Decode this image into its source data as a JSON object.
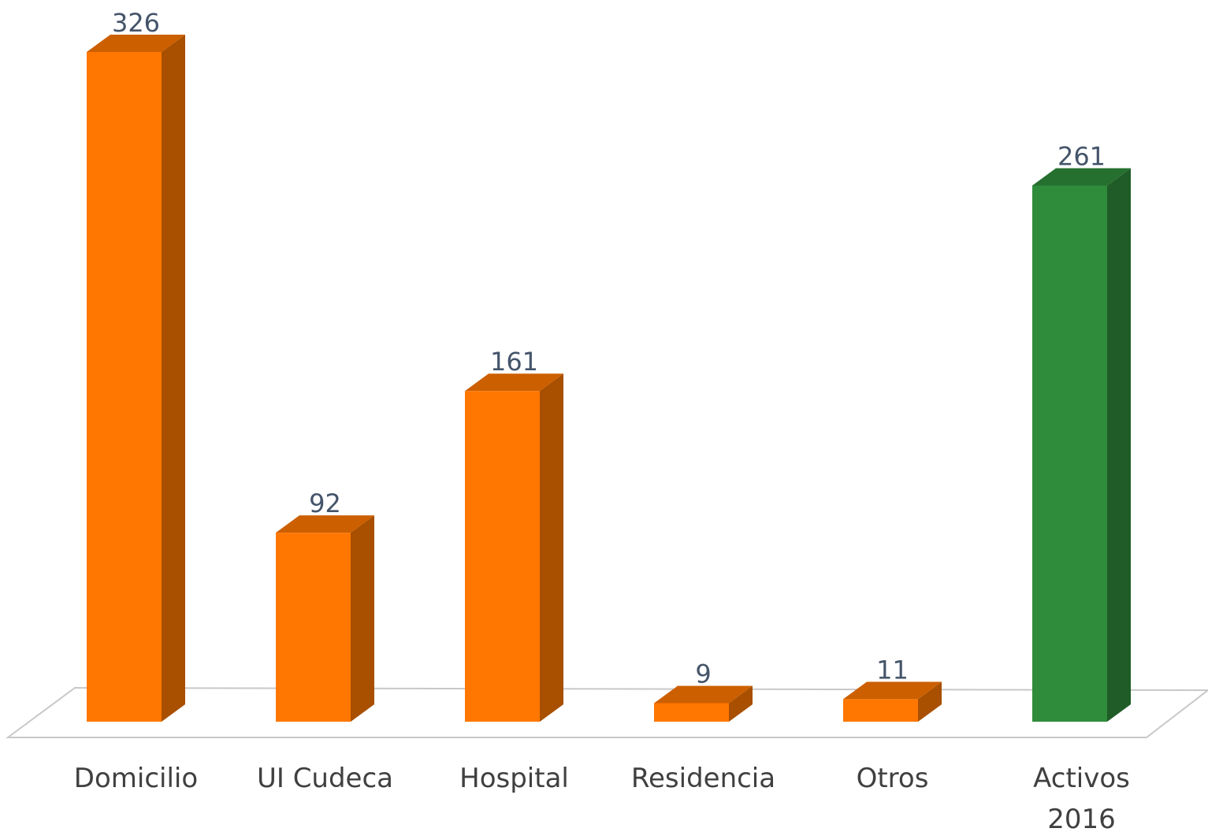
{
  "chart_data": {
    "type": "bar3d",
    "categories": [
      "Domicilio",
      "UI Cudeca",
      "Hospital",
      "Residencia",
      "Otros",
      "Activos 2016"
    ],
    "values": [
      326,
      92,
      161,
      9,
      11,
      261
    ],
    "colors": [
      "#ff7700",
      "#ff7700",
      "#ff7700",
      "#ff7700",
      "#ff7700",
      "#2f8c3b"
    ]
  }
}
